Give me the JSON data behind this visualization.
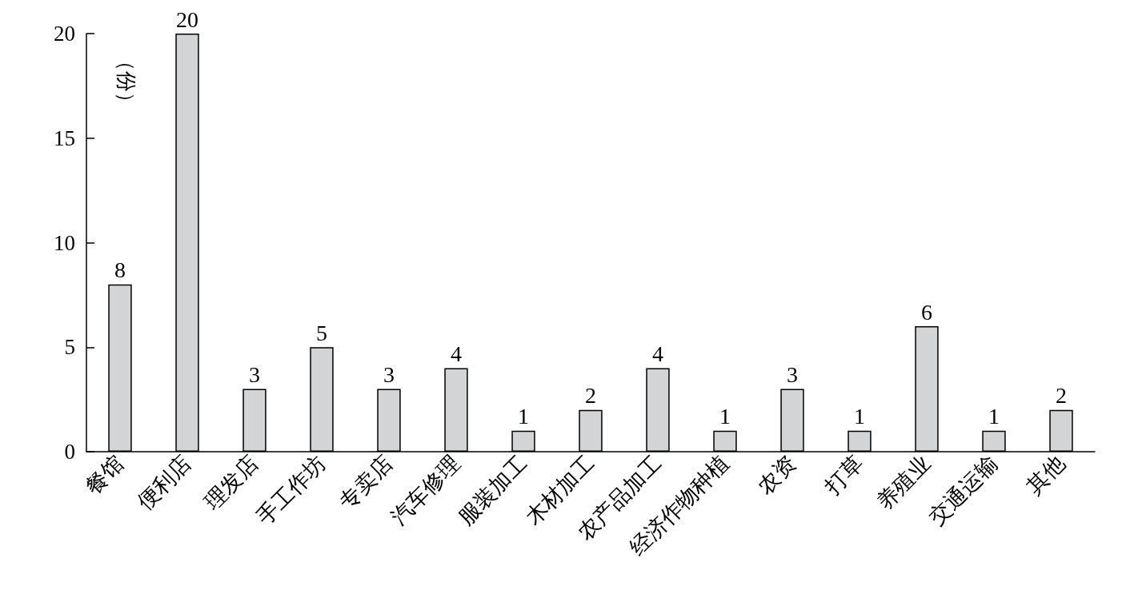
{
  "chart_data": {
    "type": "bar",
    "ylabel": "（份）",
    "categories": [
      "餐馆",
      "便利店",
      "理发店",
      "手工作坊",
      "专卖店",
      "汽车修理",
      "服装加工",
      "木材加工",
      "农产品加工",
      "经济作物种植",
      "农资",
      "打草",
      "养殖业",
      "交通运输",
      "其他"
    ],
    "values": [
      8,
      20,
      3,
      5,
      3,
      4,
      1,
      2,
      4,
      1,
      3,
      1,
      6,
      1,
      2
    ],
    "color": "#d3d4d6",
    "ylim": [
      0,
      20
    ],
    "yticks": [
      0,
      5,
      10,
      15,
      20
    ],
    "data_labels": true
  }
}
